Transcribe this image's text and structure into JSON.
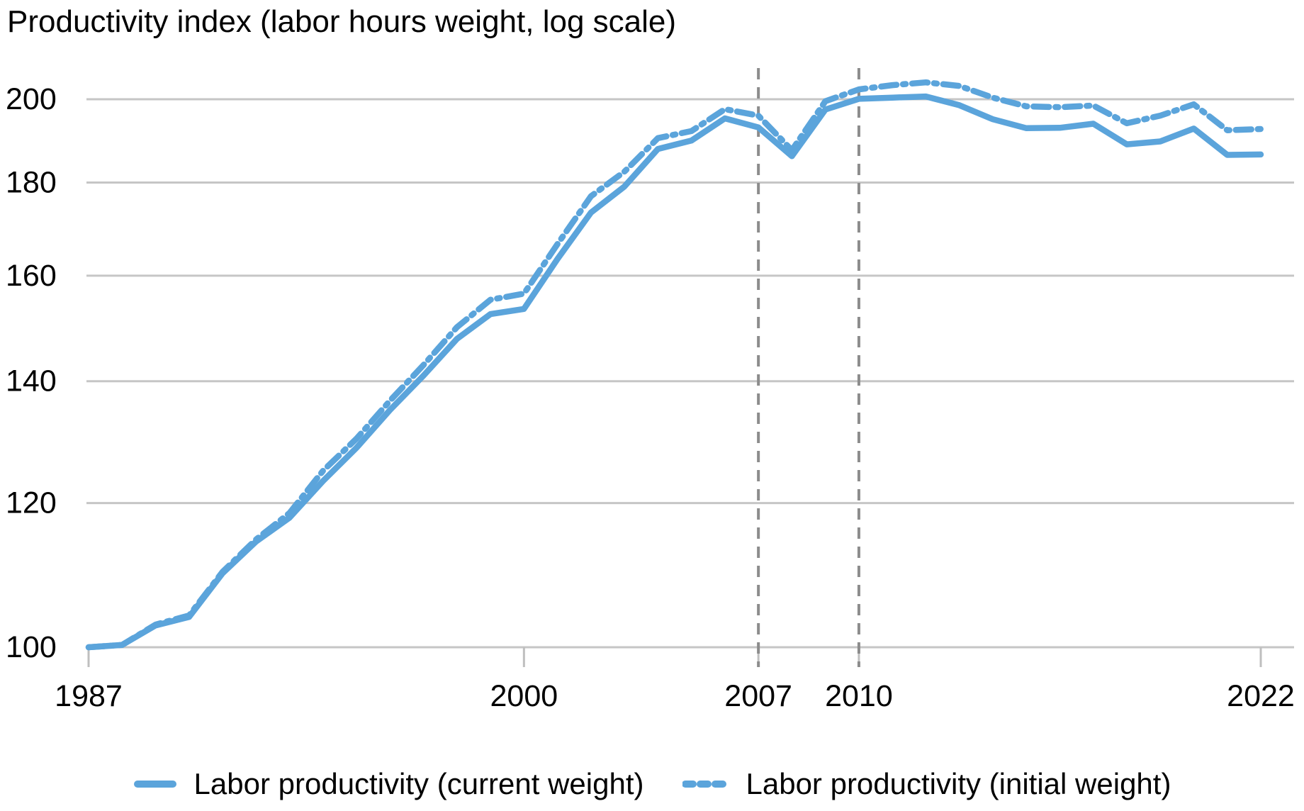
{
  "title": "Productivity index (labor hours weight, log scale)",
  "colors": {
    "line": "#5BA4DB",
    "grid": "#C6C6C6",
    "tick": "#BFBFBF",
    "refline": "#8C8C8C",
    "text": "#000000"
  },
  "legend": {
    "items": [
      {
        "label": "Labor productivity (current weight)",
        "style": "solid"
      },
      {
        "label": "Labor productivity (initial weight)",
        "style": "dash-dot"
      }
    ]
  },
  "chart_data": {
    "type": "line",
    "title": "Productivity index (labor hours weight, log scale)",
    "y_scale": "log",
    "grid": "horizontal",
    "legend_position": "bottom",
    "x": [
      1987,
      1988,
      1989,
      1990,
      1991,
      1992,
      1993,
      1994,
      1995,
      1996,
      1997,
      1998,
      1999,
      2000,
      2001,
      2002,
      2003,
      2004,
      2005,
      2006,
      2007,
      2008,
      2009,
      2010,
      2011,
      2012,
      2013,
      2014,
      2015,
      2016,
      2017,
      2018,
      2019,
      2020,
      2021,
      2022
    ],
    "series": [
      {
        "name": "Labor productivity (current weight)",
        "style": "solid",
        "values": [
          100.0,
          100.3,
          102.8,
          103.9,
          109.8,
          114.3,
          117.8,
          123.4,
          128.7,
          135.0,
          141.0,
          147.7,
          152.4,
          153.4,
          163.4,
          173.3,
          179.1,
          187.8,
          189.8,
          195.2,
          193.0,
          186.1,
          197.4,
          200.1,
          200.4,
          200.7,
          198.5,
          195.0,
          192.8,
          192.9,
          193.9,
          188.9,
          189.6,
          192.7,
          186.4,
          186.5
        ]
      },
      {
        "name": "Labor productivity (initial weight)",
        "style": "dash-dot",
        "values": [
          100.0,
          100.3,
          102.9,
          104.1,
          110.0,
          114.6,
          118.5,
          125.0,
          130.2,
          136.6,
          142.9,
          149.9,
          155.2,
          156.4,
          166.5,
          176.9,
          182.5,
          190.4,
          192.1,
          197.5,
          195.9,
          187.5,
          199.5,
          202.5,
          203.6,
          204.3,
          203.4,
          200.4,
          198.2,
          198.0,
          198.4,
          194.0,
          195.9,
          198.7,
          192.3,
          192.6
        ]
      }
    ],
    "yticks": [
      100,
      120,
      140,
      160,
      180,
      200
    ],
    "xticks": [
      1987,
      2000,
      2007,
      2010,
      2022
    ],
    "reference_lines": [
      2007,
      2010
    ],
    "xlim": [
      1987,
      2022
    ],
    "ylim": [
      100,
      208
    ]
  }
}
